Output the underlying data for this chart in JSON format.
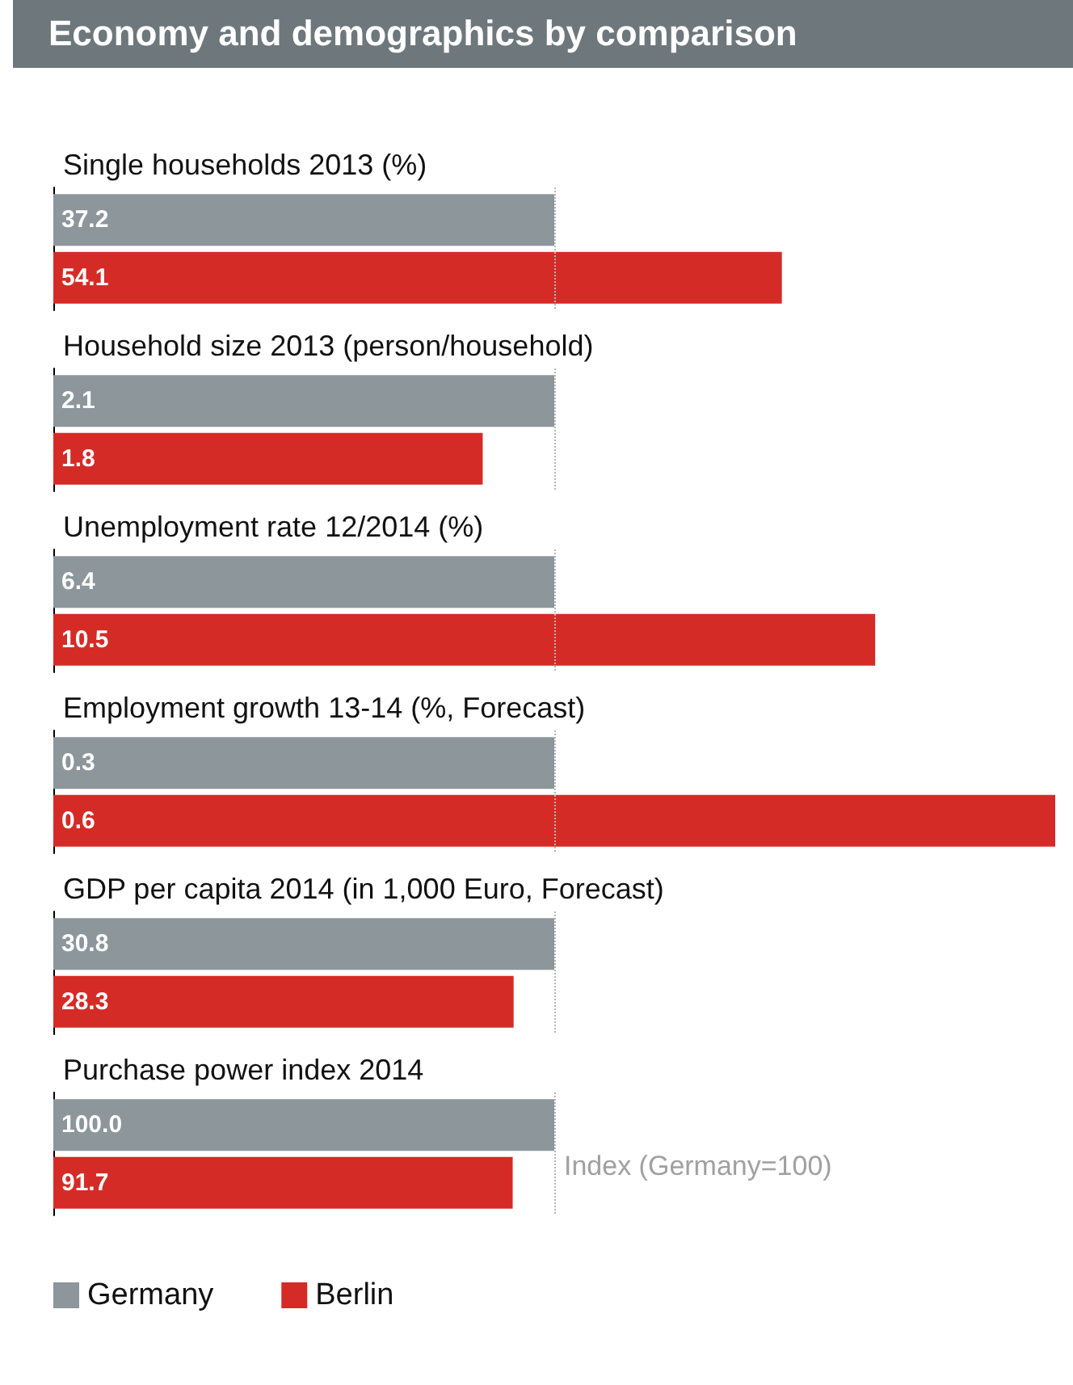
{
  "chart_data": [
    {
      "type": "bar",
      "orientation": "horizontal",
      "title": "Economy and demographics by comparison",
      "subtitle": "Single households 2013 (%)",
      "categories": [
        null
      ],
      "tick_labels": false,
      "series": [
        {
          "color": "#8c969b",
          "values": [
            37.2
          ],
          "value_labels": [
            "37.2"
          ]
        },
        {
          "color": "#d52b27",
          "values": [
            54.1
          ],
          "value_labels": [
            "54.1"
          ]
        }
      ],
      "ref_lines": [
        {
          "axis": "x",
          "value": 37.2,
          "color": "#b4b4b4",
          "line_style": "dotted"
        }
      ]
    },
    {
      "type": "bar",
      "orientation": "horizontal",
      "title": "Household size 2013 (person/household)",
      "categories": [
        null
      ],
      "tick_labels": false,
      "series": [
        {
          "color": "#8c969b",
          "values": [
            2.1
          ],
          "value_labels": [
            "2.1"
          ]
        },
        {
          "color": "#d52b27",
          "values": [
            1.8
          ],
          "value_labels": [
            "1.8"
          ]
        }
      ],
      "ref_lines": [
        {
          "axis": "x",
          "value": 2.1,
          "color": "#b4b4b4",
          "line_style": "dotted"
        }
      ]
    },
    {
      "type": "bar",
      "orientation": "horizontal",
      "title": "Unemployment rate 12/2014 (%)",
      "categories": [
        null
      ],
      "tick_labels": false,
      "series": [
        {
          "color": "#8c969b",
          "values": [
            6.4
          ],
          "value_labels": [
            "6.4"
          ]
        },
        {
          "color": "#d52b27",
          "values": [
            10.5
          ],
          "value_labels": [
            "10.5"
          ]
        }
      ],
      "ref_lines": [
        {
          "axis": "x",
          "value": 6.4,
          "color": "#b4b4b4",
          "line_style": "dotted"
        }
      ]
    },
    {
      "type": "bar",
      "orientation": "horizontal",
      "title": "Employment growth 13-14 (%, Forecast)",
      "categories": [
        null
      ],
      "tick_labels": false,
      "series": [
        {
          "color": "#8c969b",
          "values": [
            0.3
          ],
          "value_labels": [
            "0.3"
          ]
        },
        {
          "color": "#d52b27",
          "values": [
            0.6
          ],
          "value_labels": [
            "0.6"
          ]
        }
      ],
      "ref_lines": [
        {
          "axis": "x",
          "value": 0.3,
          "color": "#b4b4b4",
          "line_style": "dotted"
        }
      ]
    },
    {
      "type": "bar",
      "orientation": "horizontal",
      "title": "GDP per capita 2014 (in 1,000 Euro, Forecast)",
      "categories": [
        null
      ],
      "tick_labels": false,
      "series": [
        {
          "color": "#8c969b",
          "values": [
            30.8
          ],
          "value_labels": [
            "30.8"
          ]
        },
        {
          "color": "#d52b27",
          "values": [
            28.3
          ],
          "value_labels": [
            "28.3"
          ]
        }
      ],
      "ref_lines": [
        {
          "axis": "x",
          "value": 30.8,
          "color": "#b4b4b4",
          "line_style": "dotted"
        }
      ]
    },
    {
      "type": "bar",
      "orientation": "horizontal",
      "title": "Purchase power index 2014",
      "categories": [
        null
      ],
      "tick_labels": false,
      "series": [
        {
          "name": "Germany",
          "color": "#8c969b",
          "values": [
            100
          ],
          "value_labels": [
            "100.0"
          ]
        },
        {
          "name": "Berlin",
          "color": "#d52b27",
          "values": [
            91.7
          ],
          "value_labels": [
            "91.7"
          ]
        }
      ],
      "ref_lines": [
        {
          "axis": "x",
          "value": 100,
          "label": "Index (Germany=100)",
          "color": "#b4b4b4",
          "line_style": "dotted"
        }
      ],
      "legend": "bottom left"
    }
  ]
}
